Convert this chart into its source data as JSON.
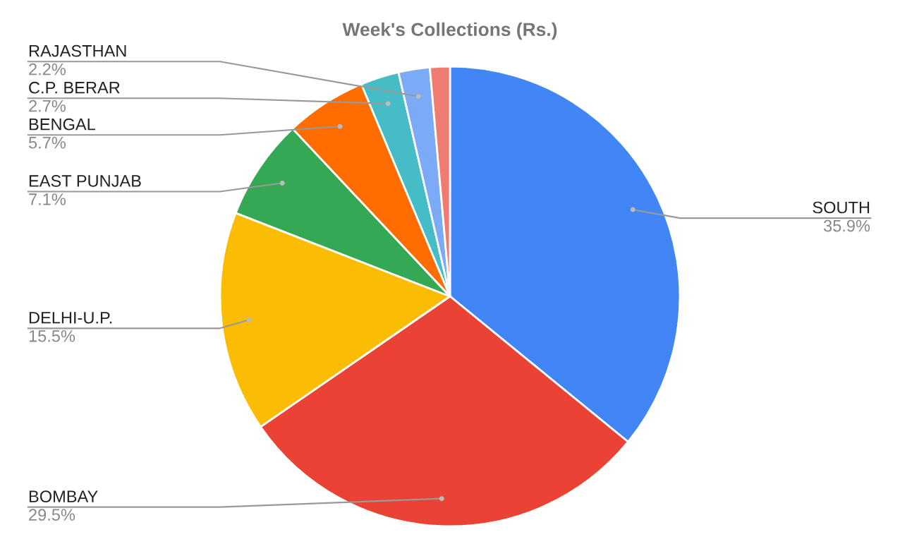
{
  "chart_data": {
    "type": "pie",
    "title": "Week's Collections (Rs.)",
    "categories": [
      "SOUTH",
      "BOMBAY",
      "DELHI-U.P.",
      "EAST PUNJAB",
      "BENGAL",
      "C.P. BERAR",
      "RAJASTHAN",
      null
    ],
    "values": [
      35.9,
      29.5,
      15.5,
      7.1,
      5.7,
      2.7,
      2.2,
      1.4
    ],
    "value_labels": [
      "35.9%",
      "29.5%",
      "15.5%",
      "7.1%",
      "5.7%",
      "2.7%",
      "2.2%",
      null
    ],
    "colors": [
      "#4285f4",
      "#ea4335",
      "#fbbc04",
      "#34a853",
      "#ff6d01",
      "#46bdc6",
      "#7baaf7",
      "#f07b72"
    ]
  }
}
